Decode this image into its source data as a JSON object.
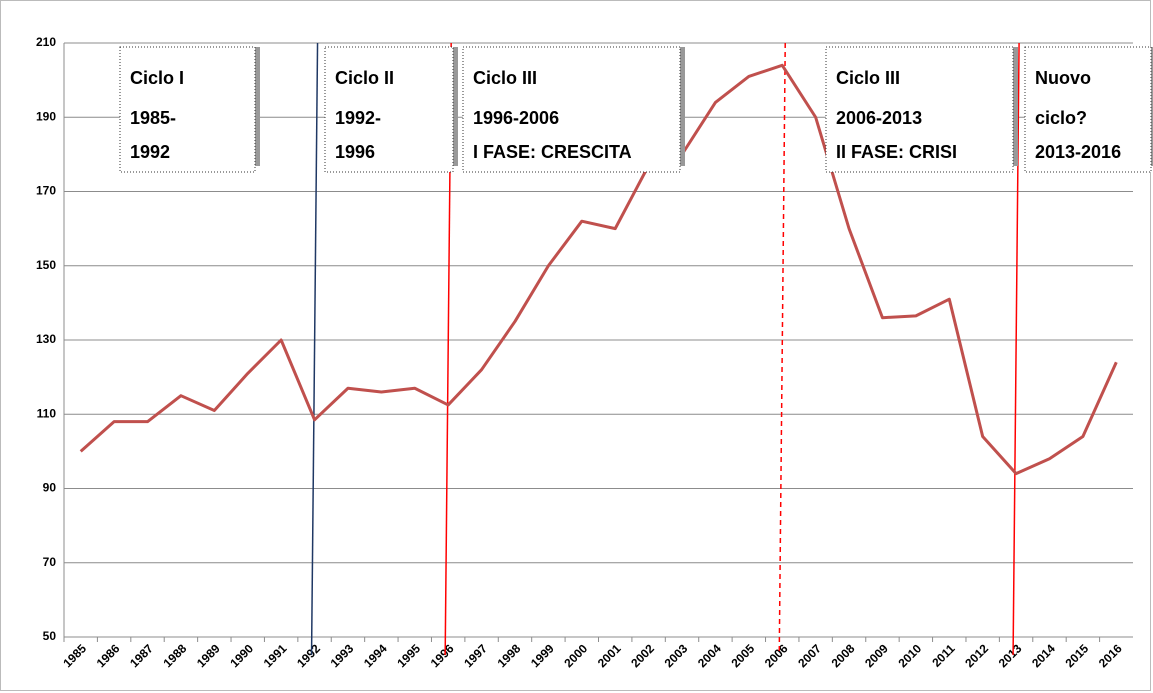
{
  "chart_data": {
    "type": "line",
    "categories": [
      "1985",
      "1986",
      "1987",
      "1988",
      "1989",
      "1990",
      "1991",
      "1992",
      "1993",
      "1994",
      "1995",
      "1996",
      "1997",
      "1998",
      "1999",
      "2000",
      "2001",
      "2002",
      "2003",
      "2004",
      "2005",
      "2006",
      "2007",
      "2008",
      "2009",
      "2010",
      "2011",
      "2012",
      "2013",
      "2014",
      "2015",
      "2016"
    ],
    "series": [
      {
        "color": "#c0504d",
        "values": [
          100,
          108,
          108,
          115,
          111,
          121,
          130,
          108.5,
          117,
          116,
          117,
          112.5,
          122,
          135,
          150,
          162,
          160,
          177,
          180,
          194,
          201,
          204,
          190,
          160,
          136,
          136.5,
          141,
          104,
          94,
          98,
          104,
          124
        ]
      }
    ],
    "ylim": [
      50,
      210
    ],
    "yticks": [
      50,
      70,
      90,
      110,
      130,
      150,
      170,
      190,
      210
    ],
    "grid": true,
    "vertical_lines": [
      {
        "x": "1992",
        "color": "#1f3864"
      },
      {
        "x": "1996",
        "color": "#ff0000"
      },
      {
        "x": "2006",
        "color": "#ff0000",
        "dashed": true
      },
      {
        "x": "2013",
        "color": "#ff0000"
      }
    ],
    "annotations": [
      {
        "lines": [
          "Ciclo I",
          "1985-",
          "1992"
        ]
      },
      {
        "lines": [
          "Ciclo II",
          "1992-",
          "1996"
        ]
      },
      {
        "lines": [
          "Ciclo III",
          "1996-2006",
          "I FASE: CRESCITA"
        ]
      },
      {
        "lines": [
          "Ciclo III",
          "2006-2013",
          "II FASE: CRISI"
        ]
      },
      {
        "lines": [
          "Nuovo",
          "ciclo?",
          "2013-2016"
        ]
      }
    ]
  }
}
